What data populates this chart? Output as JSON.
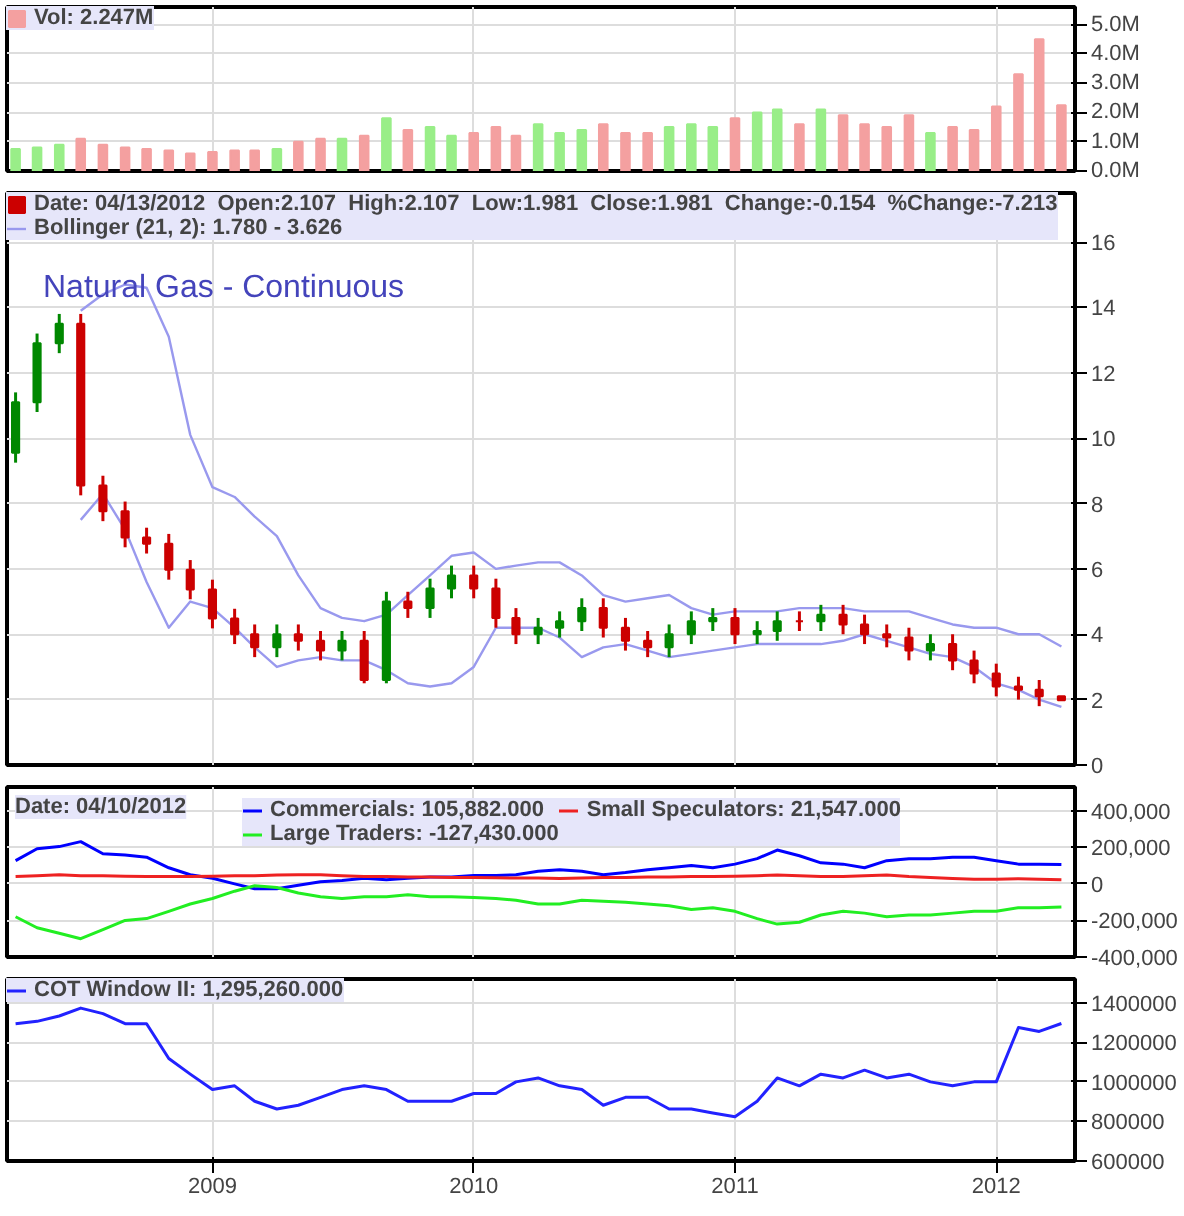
{
  "chart_data": [
    {
      "type": "bar",
      "x": [
        "2008-04",
        "2008-05",
        "2008-06",
        "2008-07",
        "2008-08",
        "2008-09",
        "2008-10",
        "2008-11",
        "2008-12",
        "2009-01",
        "2009-02",
        "2009-03",
        "2009-04",
        "2009-05",
        "2009-06",
        "2009-07",
        "2009-08",
        "2009-09",
        "2009-10",
        "2009-11",
        "2009-12",
        "2010-01",
        "2010-02",
        "2010-03",
        "2010-04",
        "2010-05",
        "2010-06",
        "2010-07",
        "2010-08",
        "2010-09",
        "2010-10",
        "2010-11",
        "2010-12",
        "2011-01",
        "2011-02",
        "2011-03",
        "2011-04",
        "2011-05",
        "2011-06",
        "2011-07",
        "2011-08",
        "2011-09",
        "2011-10",
        "2011-11",
        "2011-12",
        "2012-01",
        "2012-02",
        "2012-03",
        "2012-04"
      ],
      "series": [
        {
          "name": "Vol: 2.247M",
          "color": "#f4a0a0",
          "values": [
            0.75,
            0.8,
            0.9,
            1.1,
            0.9,
            0.8,
            0.75,
            0.7,
            0.6,
            0.65,
            0.7,
            0.7,
            0.75,
            1.0,
            1.1,
            1.1,
            1.2,
            1.8,
            1.4,
            1.5,
            1.2,
            1.3,
            1.5,
            1.2,
            1.6,
            1.3,
            1.4,
            1.6,
            1.3,
            1.3,
            1.5,
            1.6,
            1.5,
            1.8,
            2.0,
            2.1,
            1.6,
            2.1,
            1.9,
            1.6,
            1.5,
            1.9,
            1.3,
            1.5,
            1.4,
            2.2,
            3.3,
            4.5,
            2.247
          ],
          "colors": [
            "#99ee88",
            "#99ee88",
            "#99ee88",
            "#f4a0a0",
            "#f4a0a0",
            "#f4a0a0",
            "#f4a0a0",
            "#f4a0a0",
            "#f4a0a0",
            "#f4a0a0",
            "#f4a0a0",
            "#f4a0a0",
            "#99ee88",
            "#f4a0a0",
            "#f4a0a0",
            "#99ee88",
            "#f4a0a0",
            "#99ee88",
            "#f4a0a0",
            "#99ee88",
            "#99ee88",
            "#f4a0a0",
            "#f4a0a0",
            "#f4a0a0",
            "#99ee88",
            "#99ee88",
            "#99ee88",
            "#f4a0a0",
            "#f4a0a0",
            "#f4a0a0",
            "#99ee88",
            "#99ee88",
            "#99ee88",
            "#f4a0a0",
            "#99ee88",
            "#99ee88",
            "#f4a0a0",
            "#99ee88",
            "#f4a0a0",
            "#f4a0a0",
            "#f4a0a0",
            "#f4a0a0",
            "#99ee88",
            "#f4a0a0",
            "#f4a0a0",
            "#f4a0a0",
            "#f4a0a0",
            "#f4a0a0",
            "#f4a0a0"
          ]
        }
      ],
      "xlim": [
        "2008-03-20",
        "2012-04-20"
      ],
      "xticks": [
        "2009",
        "2010",
        "2011",
        "2012"
      ],
      "ylim": [
        0,
        5.6
      ],
      "yticks": [
        {
          "value": 0,
          "label": "0.0M"
        },
        {
          "value": 1,
          "label": "1.0M"
        },
        {
          "value": 2,
          "label": "2.0M"
        },
        {
          "value": 3,
          "label": "3.0M"
        },
        {
          "value": 4,
          "label": "4.0M"
        },
        {
          "value": 5,
          "label": "5.0M"
        }
      ],
      "grid": true,
      "legend": "top left",
      "tick_labels": "y"
    },
    {
      "type": "candlestick",
      "title": "Natural Gas - Continuous",
      "x": [
        "2008-04",
        "2008-05",
        "2008-06",
        "2008-07",
        "2008-08",
        "2008-09",
        "2008-10",
        "2008-11",
        "2008-12",
        "2009-01",
        "2009-02",
        "2009-03",
        "2009-04",
        "2009-05",
        "2009-06",
        "2009-07",
        "2009-08",
        "2009-09",
        "2009-10",
        "2009-11",
        "2009-12",
        "2010-01",
        "2010-02",
        "2010-03",
        "2010-04",
        "2010-05",
        "2010-06",
        "2010-07",
        "2010-08",
        "2010-09",
        "2010-10",
        "2010-11",
        "2010-12",
        "2011-01",
        "2011-02",
        "2011-03",
        "2011-04",
        "2011-05",
        "2011-06",
        "2011-07",
        "2011-08",
        "2011-09",
        "2011-10",
        "2011-11",
        "2011-12",
        "2012-01",
        "2012-02",
        "2012-03",
        "2012-04"
      ],
      "series": [
        {
          "type": "candlestick",
          "name": "Date: 04/13/2012  Open:2.107  High:2.107  Low:1.981  Close:1.981  Change:-0.154  %Change:-7.213",
          "color": "#cc0000",
          "ohlc": [
            [
              9.55,
              11.4,
              9.25,
              11.1
            ],
            [
              11.1,
              13.2,
              10.8,
              12.9
            ],
            [
              12.9,
              13.8,
              12.6,
              13.5
            ],
            [
              13.5,
              13.8,
              8.25,
              8.55
            ],
            [
              8.55,
              8.85,
              7.46,
              7.76
            ],
            [
              7.76,
              8.06,
              6.66,
              6.96
            ],
            [
              6.96,
              7.26,
              6.47,
              6.77
            ],
            [
              6.77,
              7.07,
              5.67,
              5.97
            ],
            [
              5.97,
              6.27,
              5.07,
              5.37
            ],
            [
              5.37,
              5.67,
              4.18,
              4.48
            ],
            [
              4.48,
              4.78,
              3.7,
              4.0
            ],
            [
              4.0,
              4.3,
              3.3,
              3.6
            ],
            [
              3.6,
              4.3,
              3.3,
              4.0
            ],
            [
              4.0,
              4.3,
              3.5,
              3.8
            ],
            [
              3.8,
              4.1,
              3.2,
              3.5
            ],
            [
              3.5,
              4.1,
              3.2,
              3.8
            ],
            [
              3.8,
              4.1,
              2.5,
              2.6
            ],
            [
              2.6,
              5.3,
              2.5,
              5.0
            ],
            [
              5.0,
              5.3,
              4.5,
              4.8
            ],
            [
              4.8,
              5.7,
              4.5,
              5.4
            ],
            [
              5.4,
              6.1,
              5.1,
              5.8
            ],
            [
              5.8,
              6.1,
              5.1,
              5.4
            ],
            [
              5.4,
              5.7,
              4.2,
              4.5
            ],
            [
              4.5,
              4.8,
              3.7,
              4.0
            ],
            [
              4.0,
              4.5,
              3.7,
              4.2
            ],
            [
              4.2,
              4.7,
              3.9,
              4.4
            ],
            [
              4.4,
              5.1,
              4.1,
              4.8
            ],
            [
              4.8,
              5.1,
              3.9,
              4.2
            ],
            [
              4.2,
              4.5,
              3.5,
              3.8
            ],
            [
              3.8,
              4.1,
              3.3,
              3.6
            ],
            [
              3.6,
              4.3,
              3.3,
              4.0
            ],
            [
              4.0,
              4.7,
              3.7,
              4.4
            ],
            [
              4.4,
              4.8,
              4.1,
              4.5
            ],
            [
              4.5,
              4.8,
              3.7,
              4.0
            ],
            [
              4.0,
              4.4,
              3.7,
              4.1
            ],
            [
              4.1,
              4.7,
              3.8,
              4.4
            ],
            [
              4.4,
              4.7,
              4.1,
              4.4
            ],
            [
              4.4,
              4.9,
              4.1,
              4.6
            ],
            [
              4.6,
              4.9,
              4.0,
              4.3
            ],
            [
              4.3,
              4.6,
              3.7,
              4.0
            ],
            [
              4.0,
              4.3,
              3.6,
              3.9
            ],
            [
              3.9,
              4.2,
              3.2,
              3.5
            ],
            [
              3.5,
              4.0,
              3.2,
              3.7
            ],
            [
              3.7,
              4.0,
              2.9,
              3.2
            ],
            [
              3.2,
              3.5,
              2.5,
              2.8
            ],
            [
              2.8,
              3.1,
              2.1,
              2.4
            ],
            [
              2.4,
              2.7,
              2.0,
              2.3
            ],
            [
              2.3,
              2.6,
              1.8,
              2.107
            ],
            [
              2.107,
              2.107,
              1.981,
              1.981
            ]
          ],
          "colors": [
            "#008800",
            "#008800",
            "#008800",
            "#cc0000",
            "#cc0000",
            "#cc0000",
            "#cc0000",
            "#cc0000",
            "#cc0000",
            "#cc0000",
            "#cc0000",
            "#cc0000",
            "#008800",
            "#cc0000",
            "#cc0000",
            "#008800",
            "#cc0000",
            "#008800",
            "#cc0000",
            "#008800",
            "#008800",
            "#cc0000",
            "#cc0000",
            "#cc0000",
            "#008800",
            "#008800",
            "#008800",
            "#cc0000",
            "#cc0000",
            "#cc0000",
            "#008800",
            "#008800",
            "#008800",
            "#cc0000",
            "#008800",
            "#008800",
            "#cc0000",
            "#008800",
            "#cc0000",
            "#cc0000",
            "#cc0000",
            "#cc0000",
            "#008800",
            "#cc0000",
            "#cc0000",
            "#cc0000",
            "#cc0000",
            "#cc0000",
            "#cc0000"
          ]
        },
        {
          "type": "line",
          "color": "#9999ee",
          "values": [
            null,
            null,
            null,
            7.5,
            8.3,
            7.2,
            5.6,
            4.2,
            5.0,
            4.8,
            4.2,
            3.6,
            3.0,
            3.2,
            3.3,
            3.2,
            3.2,
            2.9,
            2.5,
            2.4,
            2.5,
            3.0,
            4.2,
            4.2,
            4.2,
            3.9,
            3.3,
            3.6,
            3.7,
            3.5,
            3.3,
            3.4,
            3.5,
            3.6,
            3.7,
            3.7,
            3.7,
            3.7,
            3.8,
            4.0,
            3.8,
            3.6,
            3.4,
            3.3,
            3.0,
            2.5,
            2.3,
            2.0,
            1.78
          ]
        },
        {
          "type": "line",
          "name": "Bollinger (21, 2): 1.780 - 3.626",
          "color": "#9999ee",
          "values": [
            null,
            null,
            null,
            13.9,
            14.4,
            14.7,
            14.6,
            13.1,
            10.1,
            8.5,
            8.2,
            7.6,
            7.0,
            5.8,
            4.8,
            4.5,
            4.4,
            4.6,
            5.2,
            5.8,
            6.4,
            6.5,
            6.0,
            6.1,
            6.2,
            6.2,
            5.8,
            5.2,
            5.0,
            5.1,
            5.2,
            4.8,
            4.6,
            4.7,
            4.7,
            4.7,
            4.8,
            4.8,
            4.8,
            4.7,
            4.7,
            4.7,
            4.5,
            4.3,
            4.2,
            4.2,
            4.0,
            4.0,
            3.626
          ]
        }
      ],
      "xlim": [
        "2008-03-20",
        "2012-04-20"
      ],
      "xticks": [
        "2009",
        "2010",
        "2011",
        "2012"
      ],
      "ylim": [
        0,
        17.5
      ],
      "yticks": [
        0,
        2,
        4,
        6,
        8,
        10,
        12,
        14,
        16
      ],
      "grid": true,
      "legend": "top left",
      "tick_labels": "y"
    },
    {
      "type": "line",
      "legend_title": "Date: 04/10/2012",
      "x": [
        "2008-04",
        "2008-05",
        "2008-06",
        "2008-07",
        "2008-08",
        "2008-09",
        "2008-10",
        "2008-11",
        "2008-12",
        "2009-01",
        "2009-02",
        "2009-03",
        "2009-04",
        "2009-05",
        "2009-06",
        "2009-07",
        "2009-08",
        "2009-09",
        "2009-10",
        "2009-11",
        "2009-12",
        "2010-01",
        "2010-02",
        "2010-03",
        "2010-04",
        "2010-05",
        "2010-06",
        "2010-07",
        "2010-08",
        "2010-09",
        "2010-10",
        "2010-11",
        "2010-12",
        "2011-01",
        "2011-02",
        "2011-03",
        "2011-04",
        "2011-05",
        "2011-06",
        "2011-07",
        "2011-08",
        "2011-09",
        "2011-10",
        "2011-11",
        "2011-12",
        "2012-01",
        "2012-02",
        "2012-03",
        "2012-04"
      ],
      "series": [
        {
          "name": "Commercials: 105,882.000",
          "color": "#0000ff",
          "values": [
            127000,
            192000,
            204000,
            231000,
            165000,
            158000,
            146000,
            88000,
            50000,
            31000,
            0,
            -27000,
            -27000,
            -8000,
            12000,
            19000,
            31000,
            23000,
            31000,
            38000,
            38000,
            46000,
            46000,
            50000,
            69000,
            77000,
            69000,
            50000,
            62000,
            77000,
            88000,
            100000,
            88000,
            108000,
            138000,
            185000,
            154000,
            115000,
            108000,
            88000,
            127000,
            138000,
            138000,
            146000,
            146000,
            127000,
            108000,
            108000,
            106000
          ]
        },
        {
          "name": "Large Traders: -127,430.000",
          "color": "#22ee22",
          "values": [
            -180000,
            -240000,
            -270000,
            -300000,
            -250000,
            -200000,
            -190000,
            -150000,
            -110000,
            -80000,
            -40000,
            -10000,
            -20000,
            -50000,
            -70000,
            -80000,
            -70000,
            -70000,
            -60000,
            -70000,
            -70000,
            -75000,
            -80000,
            -90000,
            -110000,
            -110000,
            -90000,
            -95000,
            -100000,
            -110000,
            -120000,
            -140000,
            -130000,
            -150000,
            -190000,
            -220000,
            -210000,
            -170000,
            -150000,
            -160000,
            -180000,
            -170000,
            -170000,
            -160000,
            -150000,
            -150000,
            -130000,
            -130000,
            -127000
          ]
        },
        {
          "name": "Small Speculators: 21,547.000",
          "color": "#ee2222",
          "values": [
            40000,
            45000,
            50000,
            45000,
            45000,
            42000,
            40000,
            40000,
            40000,
            42000,
            45000,
            45000,
            48000,
            50000,
            50000,
            45000,
            40000,
            40000,
            38000,
            38000,
            35000,
            35000,
            33000,
            32000,
            32000,
            30000,
            32000,
            35000,
            35000,
            38000,
            38000,
            40000,
            40000,
            42000,
            45000,
            48000,
            45000,
            40000,
            40000,
            45000,
            48000,
            40000,
            35000,
            30000,
            25000,
            25000,
            28000,
            25000,
            22000
          ]
        }
      ],
      "xlim": [
        "2008-03-20",
        "2012-04-20"
      ],
      "xticks": [
        "2009",
        "2010",
        "2011",
        "2012"
      ],
      "ylim": [
        -400000,
        530000
      ],
      "yticks": [
        {
          "value": -400000,
          "label": "-400,000"
        },
        {
          "value": -200000,
          "label": "-200,000"
        },
        {
          "value": 0,
          "label": "0"
        },
        {
          "value": 200000,
          "label": "200,000"
        },
        {
          "value": 400000,
          "label": "400,000"
        }
      ],
      "grid": true,
      "legend": "top left",
      "tick_labels": "y"
    },
    {
      "type": "line",
      "x": [
        "2008-04",
        "2008-05",
        "2008-06",
        "2008-07",
        "2008-08",
        "2008-09",
        "2008-10",
        "2008-11",
        "2008-12",
        "2009-01",
        "2009-02",
        "2009-03",
        "2009-04",
        "2009-05",
        "2009-06",
        "2009-07",
        "2009-08",
        "2009-09",
        "2009-10",
        "2009-11",
        "2009-12",
        "2010-01",
        "2010-02",
        "2010-03",
        "2010-04",
        "2010-05",
        "2010-06",
        "2010-07",
        "2010-08",
        "2010-09",
        "2010-10",
        "2010-11",
        "2010-12",
        "2011-01",
        "2011-02",
        "2011-03",
        "2011-04",
        "2011-05",
        "2011-06",
        "2011-07",
        "2011-08",
        "2011-09",
        "2011-10",
        "2011-11",
        "2011-12",
        "2012-01",
        "2012-02",
        "2012-03",
        "2012-04"
      ],
      "series": [
        {
          "name": "COT Window II: 1,295,260.000",
          "color": "#2222ff",
          "values": [
            1294000,
            1306000,
            1333000,
            1373000,
            1345000,
            1294000,
            1294000,
            1118000,
            1039000,
            961000,
            980000,
            902000,
            863000,
            882000,
            922000,
            961000,
            980000,
            961000,
            902000,
            902000,
            902000,
            941000,
            941000,
            1000000,
            1020000,
            980000,
            961000,
            882000,
            922000,
            922000,
            863000,
            863000,
            843000,
            824000,
            902000,
            1020000,
            980000,
            1039000,
            1020000,
            1059000,
            1020000,
            1039000,
            1000000,
            980000,
            1000000,
            1000000,
            1275000,
            1255000,
            1295000
          ]
        }
      ],
      "xlim": [
        "2008-03-20",
        "2012-04-20"
      ],
      "xticks": [
        "2009",
        "2010",
        "2011",
        "2012"
      ],
      "ylim": [
        600000,
        1520000
      ],
      "yticks": [
        {
          "value": 600000,
          "label": "600000"
        },
        {
          "value": 800000,
          "label": "800000"
        },
        {
          "value": 1000000,
          "label": "1000000"
        },
        {
          "value": 1200000,
          "label": "1200000"
        },
        {
          "value": 1400000,
          "label": "1400000"
        }
      ],
      "grid": true,
      "legend": "top left"
    }
  ]
}
